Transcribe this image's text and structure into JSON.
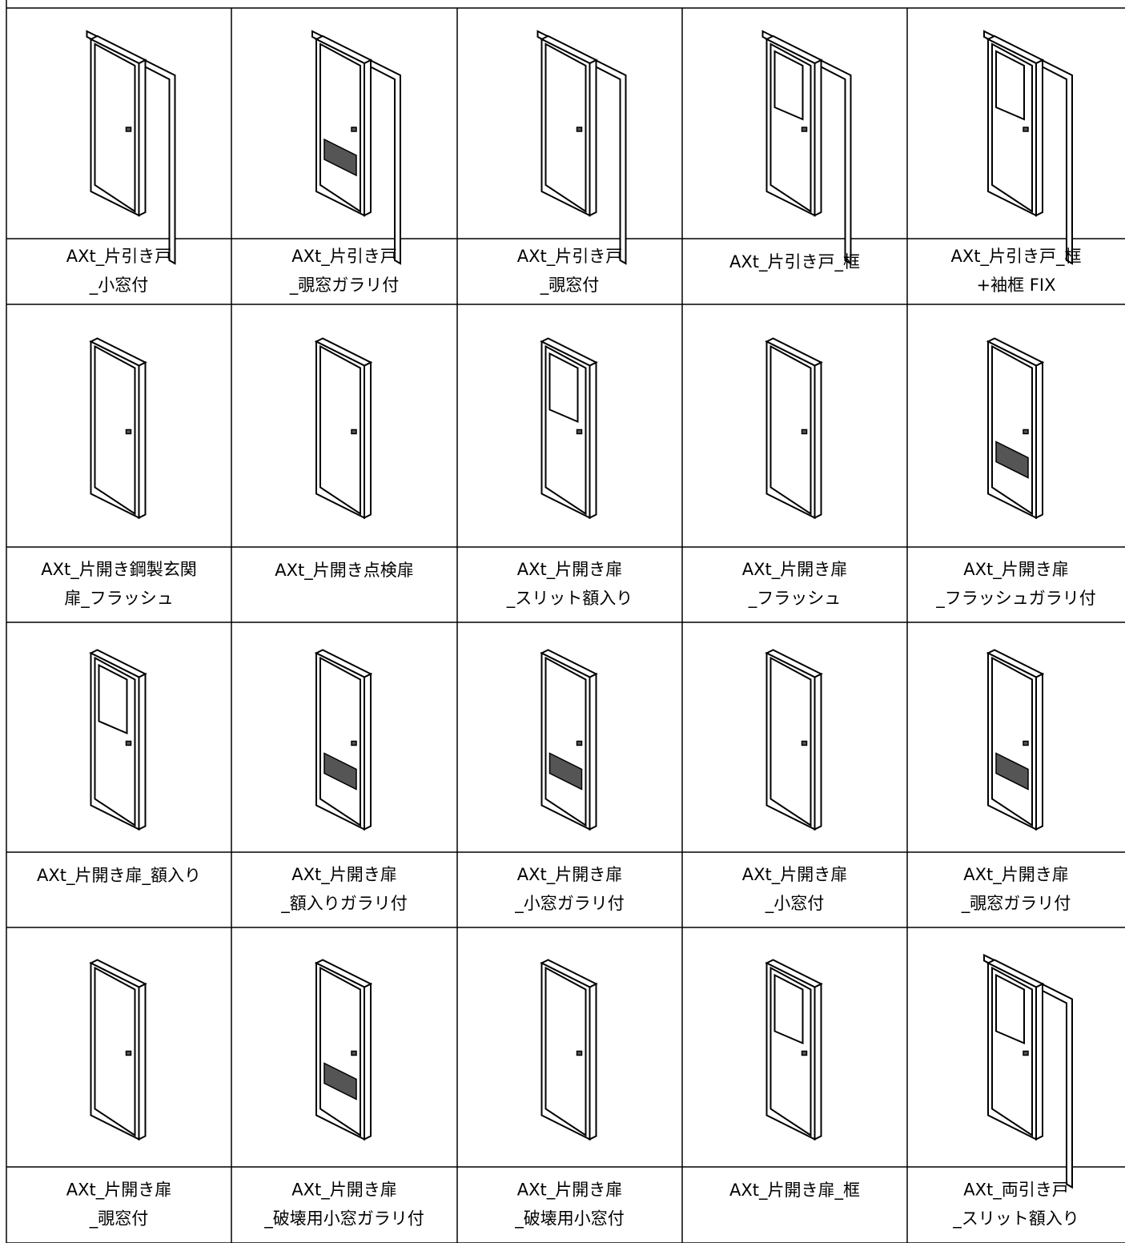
{
  "table": {
    "rows": [
      [
        [
          "AXt_片引き戸",
          "_小窓付"
        ],
        [
          "AXt_片引き戸",
          "_覗窓ガラリ付"
        ],
        [
          "AXt_片引き戸",
          "_覗窓付"
        ],
        [
          "AXt_片引き戸_框"
        ],
        [
          "AXt_片引き戸_框",
          "+袖框 FIX"
        ]
      ],
      [
        [
          "AXt_片開き鋼製玄関",
          "扉_フラッシュ"
        ],
        [
          "AXt_片開き点検扉"
        ],
        [
          "AXt_片開き扉",
          "_スリット額入り"
        ],
        [
          "AXt_片開き扉",
          "_フラッシュ"
        ],
        [
          "AXt_片開き扉",
          "_フラッシュガラリ付"
        ]
      ],
      [
        [
          "AXt_片開き扉_額入り"
        ],
        [
          "AXt_片開き扉",
          "_額入りガラリ付"
        ],
        [
          "AXt_片開き扉",
          "_小窓ガラリ付"
        ],
        [
          "AXt_片開き扉",
          "_小窓付"
        ],
        [
          "AXt_片開き扉",
          "_覗窓ガラリ付"
        ]
      ],
      [
        [
          "AXt_片開き扉",
          "_覗窓付"
        ],
        [
          "AXt_片開き扉",
          "_破壊用小窓ガラリ付"
        ],
        [
          "AXt_片開き扉",
          "_破壊用小窓付"
        ],
        [
          "AXt_片開き扉_框"
        ],
        [
          "AXt_両引き戸",
          "_スリット額入り"
        ]
      ]
    ]
  }
}
